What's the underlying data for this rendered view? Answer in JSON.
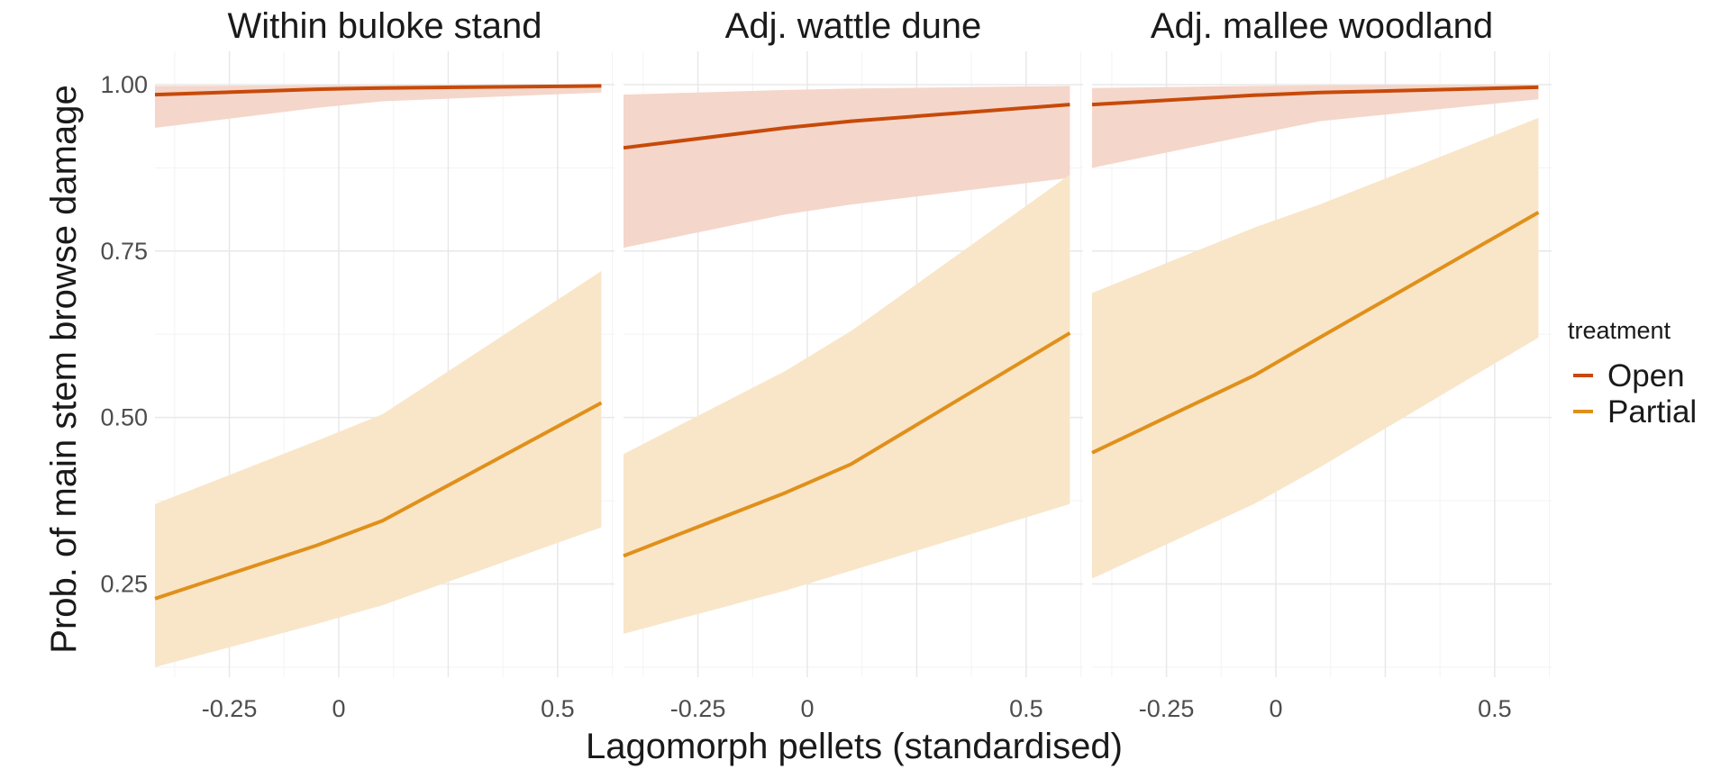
{
  "chart_data": {
    "type": "line",
    "xlabel": "Lagomorph pellets (standardised)",
    "ylabel": "Prob. of main stem browse damage",
    "xlim": [
      -0.42,
      0.63
    ],
    "ylim": [
      0.11,
      1.05
    ],
    "x_ticks": [
      -0.25,
      0,
      0.5
    ],
    "x_tick_labels": [
      "-0.25",
      "0",
      "0.5"
    ],
    "y_ticks": [
      0.25,
      0.5,
      0.75,
      1.0
    ],
    "y_tick_labels": [
      "0.25",
      "0.50",
      "0.75",
      "1.00"
    ],
    "grid": true,
    "legend": {
      "title": "treatment",
      "position": "right",
      "entries": [
        {
          "name": "Open",
          "color": "#C64A0A"
        },
        {
          "name": "Partial",
          "color": "#E0901A"
        }
      ]
    },
    "colors": {
      "Open": "#C64A0A",
      "Open_ribbon": "#F5D6CA",
      "Partial": "#E0901A",
      "Partial_ribbon": "#F9E6C9",
      "grid_major": "#E8E8E8",
      "grid_minor": "#F3F3F3"
    },
    "panels": [
      {
        "title": "Within buloke stand",
        "series": [
          {
            "name": "Open",
            "x": [
              -0.42,
              -0.05,
              0.1,
              0.6
            ],
            "y": [
              0.985,
              0.993,
              0.995,
              0.998
            ],
            "lower": [
              0.935,
              0.965,
              0.975,
              0.988
            ],
            "upper": [
              0.998,
              0.999,
              0.999,
              1.0
            ]
          },
          {
            "name": "Partial",
            "x": [
              -0.42,
              -0.05,
              0.1,
              0.6
            ],
            "y": [
              0.228,
              0.308,
              0.345,
              0.522
            ],
            "lower": [
              0.125,
              0.19,
              0.218,
              0.335
            ],
            "upper": [
              0.37,
              0.465,
              0.505,
              0.72
            ]
          }
        ]
      },
      {
        "title": "Adj. wattle dune",
        "series": [
          {
            "name": "Open",
            "x": [
              -0.42,
              -0.05,
              0.1,
              0.6
            ],
            "y": [
              0.905,
              0.935,
              0.945,
              0.97
            ],
            "lower": [
              0.755,
              0.805,
              0.82,
              0.86
            ],
            "upper": [
              0.985,
              0.992,
              0.994,
              0.998
            ]
          },
          {
            "name": "Partial",
            "x": [
              -0.42,
              -0.05,
              0.1,
              0.6
            ],
            "y": [
              0.292,
              0.387,
              0.43,
              0.627
            ],
            "lower": [
              0.175,
              0.24,
              0.27,
              0.37
            ],
            "upper": [
              0.445,
              0.57,
              0.63,
              0.865
            ]
          }
        ]
      },
      {
        "title": "Adj. mallee woodland",
        "series": [
          {
            "name": "Open",
            "x": [
              -0.42,
              -0.05,
              0.1,
              0.6
            ],
            "y": [
              0.97,
              0.984,
              0.988,
              0.996
            ],
            "lower": [
              0.875,
              0.925,
              0.945,
              0.978
            ],
            "upper": [
              0.995,
              0.998,
              0.999,
              1.0
            ]
          },
          {
            "name": "Partial",
            "x": [
              -0.42,
              -0.05,
              0.1,
              0.6
            ],
            "y": [
              0.447,
              0.563,
              0.62,
              0.808
            ],
            "lower": [
              0.258,
              0.37,
              0.425,
              0.62
            ],
            "upper": [
              0.687,
              0.785,
              0.82,
              0.95
            ]
          }
        ]
      }
    ]
  }
}
